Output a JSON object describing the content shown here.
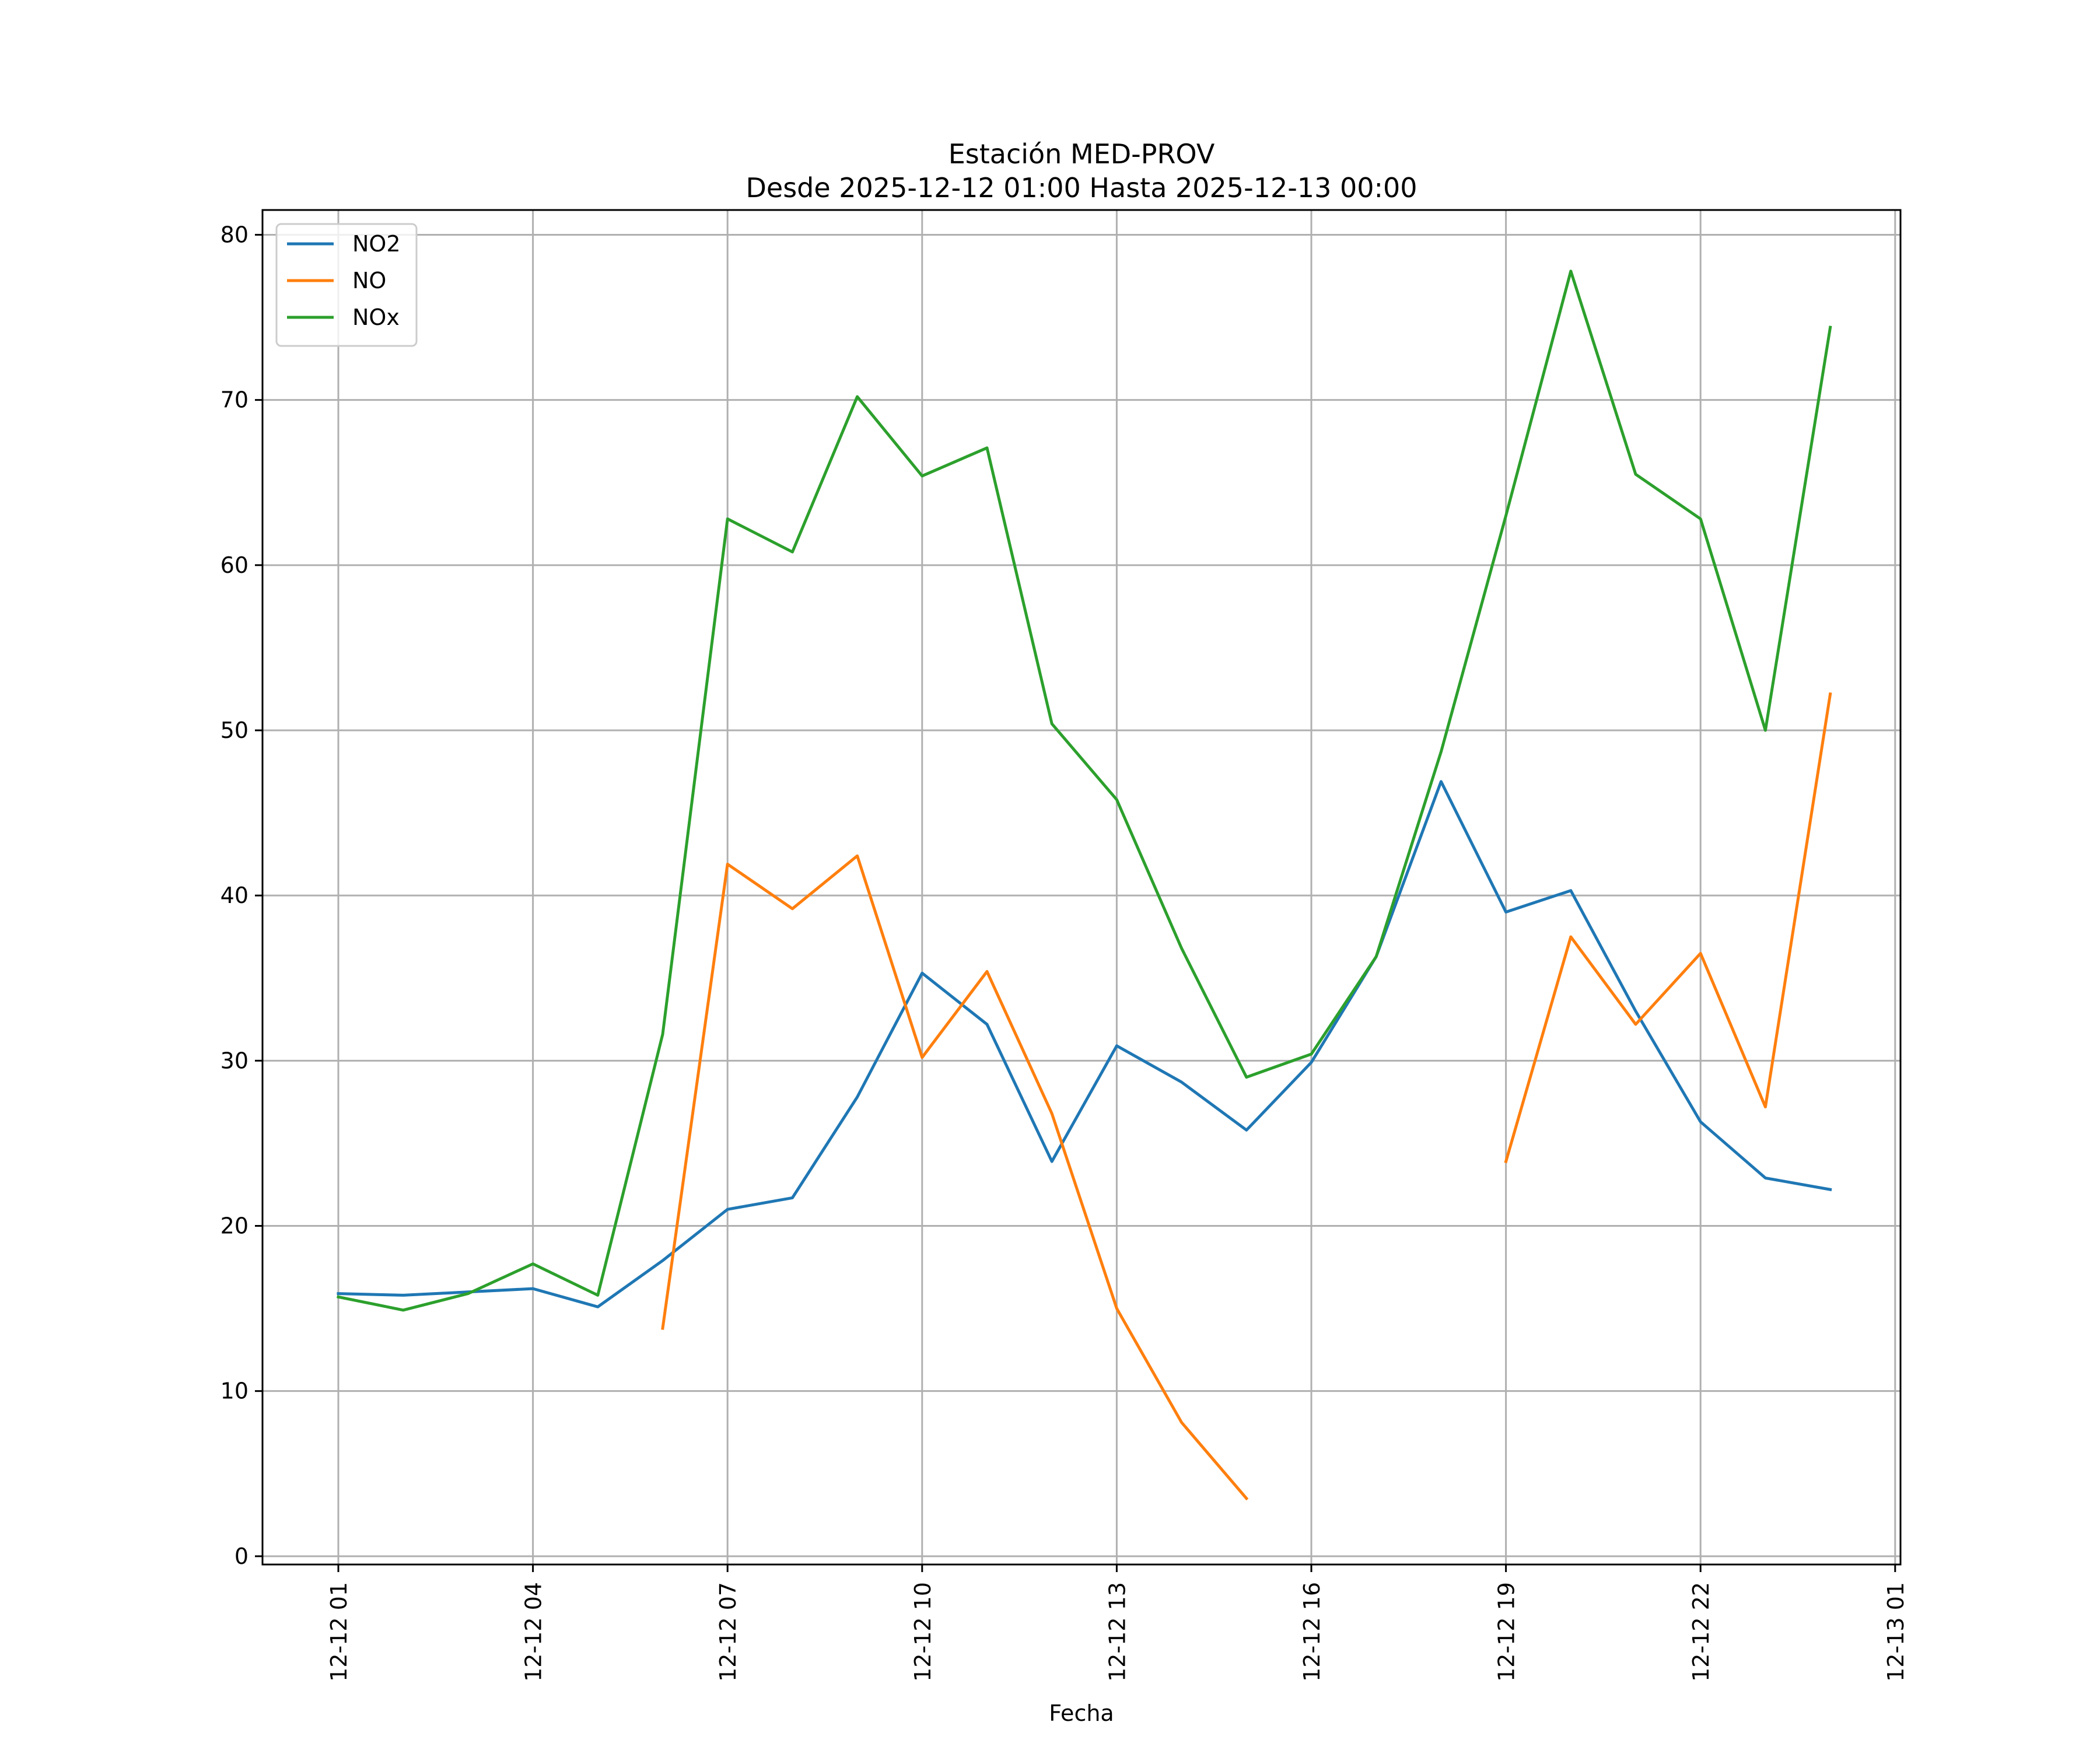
{
  "chart_data": {
    "type": "line",
    "title": "Estación MED-PROV",
    "subtitle": "Desde 2025-12-12 01:00 Hasta 2025-12-13 00:00",
    "xlabel": "Fecha",
    "ylabel": "",
    "x": [
      "12-12 01:00",
      "12-12 02:00",
      "12-12 03:00",
      "12-12 04:00",
      "12-12 05:00",
      "12-12 06:00",
      "12-12 07:00",
      "12-12 08:00",
      "12-12 09:00",
      "12-12 10:00",
      "12-12 11:00",
      "12-12 12:00",
      "12-12 13:00",
      "12-12 14:00",
      "12-12 15:00",
      "12-12 16:00",
      "12-12 17:00",
      "12-12 18:00",
      "12-12 19:00",
      "12-12 20:00",
      "12-12 21:00",
      "12-12 22:00",
      "12-12 23:00",
      "12-13 00:00"
    ],
    "x_ticks": [
      "12-12 01",
      "12-12 04",
      "12-12 07",
      "12-12 10",
      "12-12 13",
      "12-12 16",
      "12-12 19",
      "12-12 22",
      "12-13 01"
    ],
    "ylim": [
      -0.5,
      81.5
    ],
    "y_ticks": [
      0,
      10,
      20,
      30,
      40,
      50,
      60,
      70,
      80
    ],
    "grid": true,
    "legend_position": "top-left",
    "series": [
      {
        "name": "NO2",
        "color": "#1f77b4",
        "values": [
          15.9,
          15.8,
          16.0,
          16.2,
          15.1,
          17.9,
          21.0,
          21.7,
          27.8,
          35.3,
          32.2,
          23.9,
          30.9,
          28.7,
          25.8,
          29.9,
          36.3,
          46.9,
          39.0,
          40.3,
          33.0,
          26.3,
          22.9,
          22.2
        ]
      },
      {
        "name": "NO",
        "color": "#ff7f0e",
        "values": [
          null,
          null,
          null,
          null,
          null,
          13.8,
          41.9,
          39.2,
          42.4,
          30.2,
          35.4,
          26.8,
          15.0,
          8.1,
          3.5,
          null,
          null,
          null,
          23.9,
          37.5,
          32.2,
          36.5,
          27.2,
          52.2
        ]
      },
      {
        "name": "NOx",
        "color": "#2ca02c",
        "values": [
          15.7,
          14.9,
          15.9,
          17.7,
          15.8,
          31.6,
          62.8,
          60.8,
          70.2,
          65.4,
          67.1,
          50.4,
          45.8,
          36.8,
          29.0,
          30.4,
          36.3,
          48.7,
          63.0,
          77.8,
          65.5,
          62.8,
          50.0,
          74.4
        ]
      }
    ]
  }
}
